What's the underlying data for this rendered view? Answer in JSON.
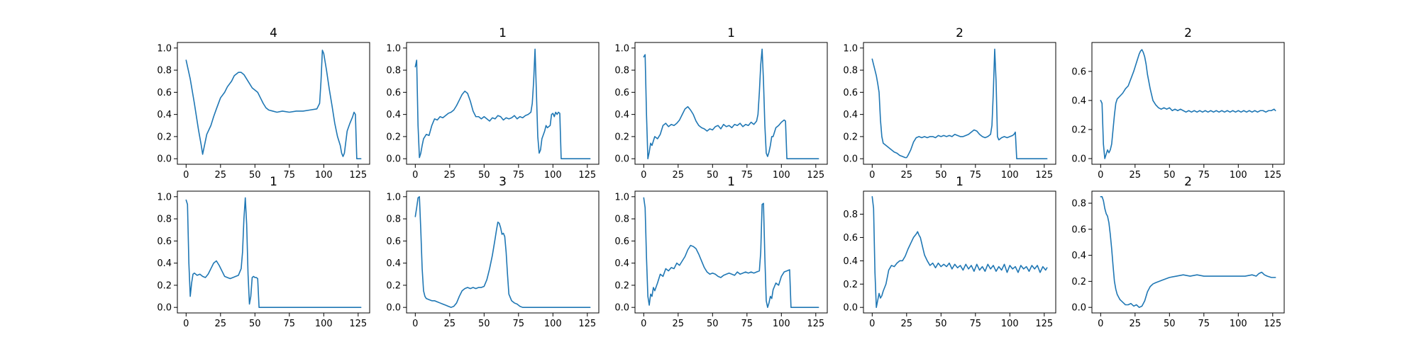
{
  "series_color": "#1f77b4",
  "chart_data": [
    {
      "type": "line",
      "title": "4",
      "xlim": [
        -6.35,
        133.35
      ],
      "ylim": [
        -0.05,
        1.05
      ],
      "x_ticks": [
        0,
        25,
        50,
        75,
        100,
        125
      ],
      "y_ticks": [
        0.0,
        0.2,
        0.4,
        0.6,
        0.8,
        1.0
      ],
      "x": [
        0,
        3,
        6,
        9,
        11,
        12,
        13,
        15,
        18,
        20,
        22,
        25,
        28,
        30,
        33,
        35,
        38,
        40,
        42,
        44,
        46,
        48,
        50,
        52,
        54,
        56,
        58,
        60,
        63,
        66,
        70,
        75,
        80,
        85,
        90,
        95,
        97,
        98,
        99,
        100,
        102,
        104,
        106,
        108,
        110,
        112,
        113,
        114,
        115,
        117,
        119,
        121,
        122,
        123,
        124,
        126,
        127
      ],
      "y": [
        0.89,
        0.72,
        0.5,
        0.26,
        0.12,
        0.04,
        0.1,
        0.22,
        0.3,
        0.38,
        0.45,
        0.55,
        0.6,
        0.65,
        0.7,
        0.75,
        0.78,
        0.78,
        0.76,
        0.72,
        0.68,
        0.64,
        0.62,
        0.6,
        0.55,
        0.5,
        0.46,
        0.44,
        0.43,
        0.42,
        0.43,
        0.42,
        0.43,
        0.43,
        0.44,
        0.45,
        0.5,
        0.7,
        0.98,
        0.95,
        0.8,
        0.63,
        0.48,
        0.32,
        0.2,
        0.12,
        0.05,
        0.02,
        0.05,
        0.25,
        0.32,
        0.38,
        0.42,
        0.4,
        0.0,
        0.0,
        0.0
      ]
    },
    {
      "type": "line",
      "title": "1",
      "xlim": [
        -6.35,
        133.35
      ],
      "ylim": [
        -0.05,
        1.05
      ],
      "x_ticks": [
        0,
        25,
        50,
        75,
        100,
        125
      ],
      "y_ticks": [
        0.0,
        0.2,
        0.4,
        0.6,
        0.8,
        1.0
      ],
      "x": [
        0,
        1,
        2,
        3,
        4,
        5,
        6,
        7,
        8,
        10,
        12,
        14,
        16,
        18,
        20,
        22,
        24,
        26,
        28,
        30,
        32,
        34,
        36,
        38,
        40,
        42,
        44,
        46,
        48,
        50,
        52,
        54,
        56,
        58,
        60,
        62,
        64,
        66,
        68,
        70,
        72,
        74,
        76,
        78,
        80,
        82,
        84,
        85,
        86,
        87,
        88,
        89,
        90,
        91,
        92,
        94,
        95,
        96,
        98,
        99,
        100,
        101,
        102,
        103,
        104,
        105,
        106,
        107,
        108,
        127
      ],
      "y": [
        0.83,
        0.89,
        0.3,
        0.01,
        0.05,
        0.12,
        0.18,
        0.2,
        0.22,
        0.21,
        0.3,
        0.36,
        0.35,
        0.38,
        0.37,
        0.39,
        0.41,
        0.42,
        0.44,
        0.48,
        0.53,
        0.58,
        0.61,
        0.59,
        0.52,
        0.43,
        0.38,
        0.38,
        0.36,
        0.38,
        0.36,
        0.34,
        0.37,
        0.36,
        0.39,
        0.38,
        0.35,
        0.37,
        0.36,
        0.37,
        0.39,
        0.36,
        0.38,
        0.37,
        0.39,
        0.4,
        0.42,
        0.5,
        0.7,
        0.99,
        0.6,
        0.2,
        0.05,
        0.08,
        0.18,
        0.25,
        0.3,
        0.28,
        0.3,
        0.4,
        0.41,
        0.38,
        0.42,
        0.4,
        0.42,
        0.41,
        0.0,
        0.0,
        0.0,
        0.0
      ]
    },
    {
      "type": "line",
      "title": "1",
      "xlim": [
        -6.35,
        133.35
      ],
      "ylim": [
        -0.05,
        1.05
      ],
      "x_ticks": [
        0,
        25,
        50,
        75,
        100,
        125
      ],
      "y_ticks": [
        0.0,
        0.2,
        0.4,
        0.6,
        0.8,
        1.0
      ],
      "x": [
        0,
        1,
        2,
        3,
        4,
        5,
        6,
        7,
        8,
        10,
        12,
        14,
        16,
        18,
        20,
        22,
        24,
        26,
        28,
        30,
        32,
        34,
        36,
        38,
        40,
        42,
        44,
        46,
        48,
        50,
        52,
        54,
        56,
        58,
        60,
        62,
        64,
        66,
        68,
        70,
        72,
        74,
        76,
        78,
        80,
        82,
        83,
        84,
        85,
        86,
        87,
        88,
        89,
        90,
        91,
        92,
        93,
        94,
        96,
        98,
        100,
        102,
        103,
        104,
        127
      ],
      "y": [
        0.92,
        0.94,
        0.4,
        0.0,
        0.06,
        0.14,
        0.12,
        0.16,
        0.2,
        0.18,
        0.22,
        0.3,
        0.32,
        0.29,
        0.31,
        0.3,
        0.32,
        0.35,
        0.4,
        0.45,
        0.47,
        0.44,
        0.4,
        0.34,
        0.3,
        0.28,
        0.27,
        0.25,
        0.27,
        0.26,
        0.29,
        0.3,
        0.27,
        0.31,
        0.29,
        0.3,
        0.28,
        0.31,
        0.3,
        0.32,
        0.29,
        0.31,
        0.3,
        0.33,
        0.31,
        0.34,
        0.4,
        0.6,
        0.85,
        0.99,
        0.7,
        0.3,
        0.05,
        0.02,
        0.06,
        0.12,
        0.2,
        0.2,
        0.28,
        0.3,
        0.33,
        0.35,
        0.34,
        0.0,
        0.0
      ]
    },
    {
      "type": "line",
      "title": "2",
      "xlim": [
        -6.35,
        133.35
      ],
      "ylim": [
        -0.05,
        1.05
      ],
      "x_ticks": [
        0,
        25,
        50,
        75,
        100,
        125
      ],
      "y_ticks": [
        0.0,
        0.2,
        0.4,
        0.6,
        0.8,
        1.0
      ],
      "x": [
        0,
        1,
        2,
        3,
        4,
        5,
        6,
        7,
        8,
        10,
        12,
        14,
        16,
        18,
        20,
        22,
        24,
        25,
        26,
        28,
        30,
        32,
        34,
        36,
        38,
        40,
        42,
        44,
        46,
        48,
        50,
        52,
        54,
        56,
        58,
        60,
        62,
        64,
        66,
        68,
        70,
        72,
        74,
        76,
        78,
        80,
        82,
        84,
        86,
        87,
        88,
        89,
        90,
        91,
        92,
        94,
        96,
        98,
        100,
        102,
        103,
        104,
        105,
        127
      ],
      "y": [
        0.9,
        0.85,
        0.8,
        0.75,
        0.68,
        0.6,
        0.35,
        0.2,
        0.14,
        0.12,
        0.1,
        0.08,
        0.06,
        0.05,
        0.03,
        0.02,
        0.01,
        0.01,
        0.03,
        0.08,
        0.15,
        0.19,
        0.2,
        0.19,
        0.2,
        0.19,
        0.2,
        0.2,
        0.19,
        0.21,
        0.2,
        0.21,
        0.2,
        0.21,
        0.2,
        0.22,
        0.21,
        0.2,
        0.2,
        0.21,
        0.22,
        0.24,
        0.26,
        0.25,
        0.22,
        0.2,
        0.19,
        0.2,
        0.22,
        0.3,
        0.6,
        0.99,
        0.7,
        0.2,
        0.17,
        0.19,
        0.2,
        0.19,
        0.2,
        0.21,
        0.22,
        0.24,
        0.0,
        0.0
      ]
    },
    {
      "type": "line",
      "title": "2",
      "xlim": [
        -6.35,
        133.35
      ],
      "ylim": [
        -0.039,
        0.799
      ],
      "x_ticks": [
        0,
        25,
        50,
        75,
        100,
        125
      ],
      "y_ticks": [
        0.0,
        0.2,
        0.4,
        0.6
      ],
      "x": [
        0,
        1,
        2,
        3,
        4,
        5,
        6,
        7,
        8,
        9,
        10,
        11,
        12,
        13,
        14,
        16,
        18,
        20,
        22,
        24,
        26,
        28,
        29,
        30,
        31,
        32,
        33,
        34,
        36,
        38,
        40,
        42,
        44,
        46,
        48,
        50,
        52,
        54,
        56,
        58,
        60,
        62,
        64,
        66,
        68,
        70,
        72,
        74,
        76,
        78,
        80,
        82,
        84,
        86,
        88,
        90,
        92,
        94,
        96,
        98,
        100,
        102,
        104,
        106,
        108,
        110,
        112,
        114,
        116,
        118,
        120,
        122,
        124,
        126,
        127
      ],
      "y": [
        0.4,
        0.38,
        0.1,
        0.0,
        0.03,
        0.06,
        0.04,
        0.06,
        0.1,
        0.2,
        0.3,
        0.38,
        0.41,
        0.42,
        0.43,
        0.45,
        0.48,
        0.5,
        0.55,
        0.6,
        0.66,
        0.72,
        0.74,
        0.75,
        0.73,
        0.7,
        0.65,
        0.58,
        0.48,
        0.4,
        0.37,
        0.35,
        0.34,
        0.35,
        0.34,
        0.35,
        0.33,
        0.34,
        0.33,
        0.34,
        0.33,
        0.32,
        0.33,
        0.32,
        0.33,
        0.32,
        0.33,
        0.32,
        0.33,
        0.32,
        0.33,
        0.32,
        0.33,
        0.32,
        0.33,
        0.32,
        0.33,
        0.32,
        0.33,
        0.32,
        0.33,
        0.32,
        0.33,
        0.32,
        0.33,
        0.32,
        0.33,
        0.32,
        0.33,
        0.33,
        0.32,
        0.33,
        0.33,
        0.34,
        0.33
      ]
    },
    {
      "type": "line",
      "title": "1",
      "xlim": [
        -6.35,
        133.35
      ],
      "ylim": [
        -0.05,
        1.05
      ],
      "x_ticks": [
        0,
        25,
        50,
        75,
        100,
        125
      ],
      "y_ticks": [
        0.0,
        0.2,
        0.4,
        0.6,
        0.8,
        1.0
      ],
      "x": [
        0,
        1,
        2,
        3,
        4,
        5,
        6,
        8,
        10,
        12,
        14,
        16,
        18,
        20,
        22,
        24,
        26,
        28,
        30,
        32,
        34,
        36,
        38,
        40,
        41,
        42,
        43,
        44,
        45,
        46,
        47,
        48,
        49,
        50,
        51,
        52,
        53,
        127
      ],
      "y": [
        0.97,
        0.93,
        0.4,
        0.1,
        0.22,
        0.3,
        0.31,
        0.29,
        0.3,
        0.28,
        0.27,
        0.3,
        0.35,
        0.4,
        0.42,
        0.38,
        0.33,
        0.28,
        0.27,
        0.26,
        0.27,
        0.28,
        0.29,
        0.35,
        0.5,
        0.8,
        0.99,
        0.75,
        0.3,
        0.03,
        0.1,
        0.27,
        0.28,
        0.27,
        0.27,
        0.26,
        0.0,
        0.0
      ]
    },
    {
      "type": "line",
      "title": "3",
      "xlim": [
        -6.35,
        133.35
      ],
      "ylim": [
        -0.05,
        1.05
      ],
      "x_ticks": [
        0,
        25,
        50,
        75,
        100,
        125
      ],
      "y_ticks": [
        0.0,
        0.2,
        0.4,
        0.6,
        0.8,
        1.0
      ],
      "x": [
        0,
        1,
        2,
        3,
        4,
        5,
        6,
        7,
        8,
        10,
        12,
        14,
        16,
        18,
        20,
        22,
        24,
        26,
        28,
        30,
        32,
        34,
        36,
        38,
        40,
        42,
        44,
        46,
        48,
        50,
        52,
        54,
        56,
        58,
        59,
        60,
        61,
        62,
        63,
        64,
        65,
        66,
        67,
        68,
        70,
        72,
        74,
        76,
        78,
        80,
        127
      ],
      "y": [
        0.82,
        0.9,
        0.99,
        1.0,
        0.7,
        0.35,
        0.15,
        0.1,
        0.08,
        0.07,
        0.06,
        0.06,
        0.05,
        0.04,
        0.03,
        0.02,
        0.01,
        0.0,
        0.01,
        0.04,
        0.1,
        0.15,
        0.17,
        0.18,
        0.17,
        0.18,
        0.17,
        0.18,
        0.18,
        0.19,
        0.25,
        0.35,
        0.47,
        0.62,
        0.7,
        0.77,
        0.76,
        0.72,
        0.66,
        0.67,
        0.64,
        0.5,
        0.3,
        0.12,
        0.06,
        0.04,
        0.03,
        0.01,
        0.0,
        0.0,
        0.0
      ]
    },
    {
      "type": "line",
      "title": "1",
      "xlim": [
        -6.35,
        133.35
      ],
      "ylim": [
        -0.05,
        1.05
      ],
      "x_ticks": [
        0,
        25,
        50,
        75,
        100,
        125
      ],
      "y_ticks": [
        0.0,
        0.2,
        0.4,
        0.6,
        0.8,
        1.0
      ],
      "x": [
        0,
        1,
        2,
        3,
        4,
        5,
        6,
        7,
        8,
        10,
        12,
        14,
        16,
        18,
        20,
        22,
        24,
        26,
        28,
        30,
        32,
        34,
        36,
        38,
        40,
        42,
        44,
        46,
        48,
        50,
        52,
        54,
        56,
        58,
        60,
        62,
        64,
        66,
        68,
        70,
        72,
        74,
        76,
        78,
        80,
        82,
        84,
        85,
        86,
        87,
        88,
        89,
        90,
        91,
        92,
        93,
        94,
        96,
        98,
        100,
        102,
        104,
        106,
        107,
        108,
        127
      ],
      "y": [
        0.99,
        0.9,
        0.45,
        0.1,
        0.02,
        0.12,
        0.1,
        0.18,
        0.15,
        0.22,
        0.3,
        0.28,
        0.35,
        0.33,
        0.36,
        0.35,
        0.4,
        0.38,
        0.42,
        0.46,
        0.52,
        0.56,
        0.55,
        0.53,
        0.48,
        0.42,
        0.36,
        0.32,
        0.3,
        0.31,
        0.3,
        0.28,
        0.27,
        0.29,
        0.3,
        0.31,
        0.3,
        0.29,
        0.32,
        0.3,
        0.31,
        0.32,
        0.31,
        0.32,
        0.31,
        0.32,
        0.33,
        0.5,
        0.93,
        0.94,
        0.45,
        0.06,
        0.0,
        0.04,
        0.1,
        0.08,
        0.16,
        0.22,
        0.2,
        0.28,
        0.32,
        0.33,
        0.34,
        0.0,
        0.0,
        0.0
      ]
    },
    {
      "type": "line",
      "title": "1",
      "xlim": [
        -6.35,
        133.35
      ],
      "ylim": [
        -0.0475,
        0.9975
      ],
      "x_ticks": [
        0,
        25,
        50,
        75,
        100,
        125
      ],
      "y_ticks": [
        0.0,
        0.2,
        0.4,
        0.6,
        0.8
      ],
      "x": [
        0,
        1,
        2,
        3,
        4,
        5,
        6,
        7,
        8,
        10,
        12,
        14,
        16,
        18,
        20,
        22,
        24,
        26,
        28,
        30,
        32,
        33,
        34,
        35,
        36,
        37,
        38,
        40,
        42,
        44,
        46,
        48,
        50,
        52,
        54,
        56,
        58,
        60,
        62,
        64,
        66,
        68,
        70,
        72,
        74,
        76,
        78,
        80,
        82,
        84,
        86,
        88,
        90,
        92,
        94,
        96,
        98,
        100,
        102,
        104,
        106,
        108,
        110,
        112,
        114,
        116,
        118,
        120,
        122,
        124,
        126,
        127
      ],
      "y": [
        0.95,
        0.85,
        0.3,
        0.0,
        0.06,
        0.12,
        0.08,
        0.1,
        0.14,
        0.2,
        0.32,
        0.36,
        0.35,
        0.38,
        0.4,
        0.4,
        0.44,
        0.5,
        0.55,
        0.6,
        0.63,
        0.65,
        0.62,
        0.6,
        0.55,
        0.5,
        0.45,
        0.4,
        0.36,
        0.38,
        0.34,
        0.38,
        0.35,
        0.37,
        0.35,
        0.38,
        0.33,
        0.37,
        0.34,
        0.36,
        0.32,
        0.37,
        0.33,
        0.36,
        0.31,
        0.37,
        0.32,
        0.35,
        0.31,
        0.37,
        0.33,
        0.36,
        0.31,
        0.35,
        0.32,
        0.37,
        0.3,
        0.36,
        0.33,
        0.35,
        0.3,
        0.36,
        0.33,
        0.35,
        0.31,
        0.36,
        0.33,
        0.36,
        0.3,
        0.35,
        0.32,
        0.34
      ]
    },
    {
      "type": "line",
      "title": "2",
      "xlim": [
        -6.35,
        133.35
      ],
      "ylim": [
        -0.0425,
        0.8925
      ],
      "x_ticks": [
        0,
        25,
        50,
        75,
        100,
        125
      ],
      "y_ticks": [
        0.0,
        0.2,
        0.4,
        0.6,
        0.8
      ],
      "x": [
        0,
        1,
        2,
        3,
        4,
        5,
        6,
        7,
        8,
        9,
        10,
        11,
        12,
        13,
        14,
        15,
        16,
        18,
        20,
        22,
        24,
        26,
        28,
        30,
        32,
        34,
        36,
        38,
        40,
        45,
        50,
        55,
        60,
        65,
        70,
        75,
        80,
        85,
        90,
        95,
        100,
        105,
        110,
        113,
        115,
        117,
        119,
        121,
        124,
        127
      ],
      "y": [
        0.85,
        0.85,
        0.82,
        0.76,
        0.72,
        0.7,
        0.65,
        0.56,
        0.45,
        0.32,
        0.2,
        0.14,
        0.1,
        0.08,
        0.06,
        0.05,
        0.04,
        0.02,
        0.02,
        0.03,
        0.01,
        0.02,
        0.0,
        0.01,
        0.05,
        0.12,
        0.16,
        0.18,
        0.19,
        0.21,
        0.23,
        0.24,
        0.25,
        0.24,
        0.25,
        0.24,
        0.24,
        0.24,
        0.24,
        0.24,
        0.24,
        0.24,
        0.25,
        0.24,
        0.26,
        0.27,
        0.25,
        0.24,
        0.23,
        0.23
      ]
    }
  ]
}
